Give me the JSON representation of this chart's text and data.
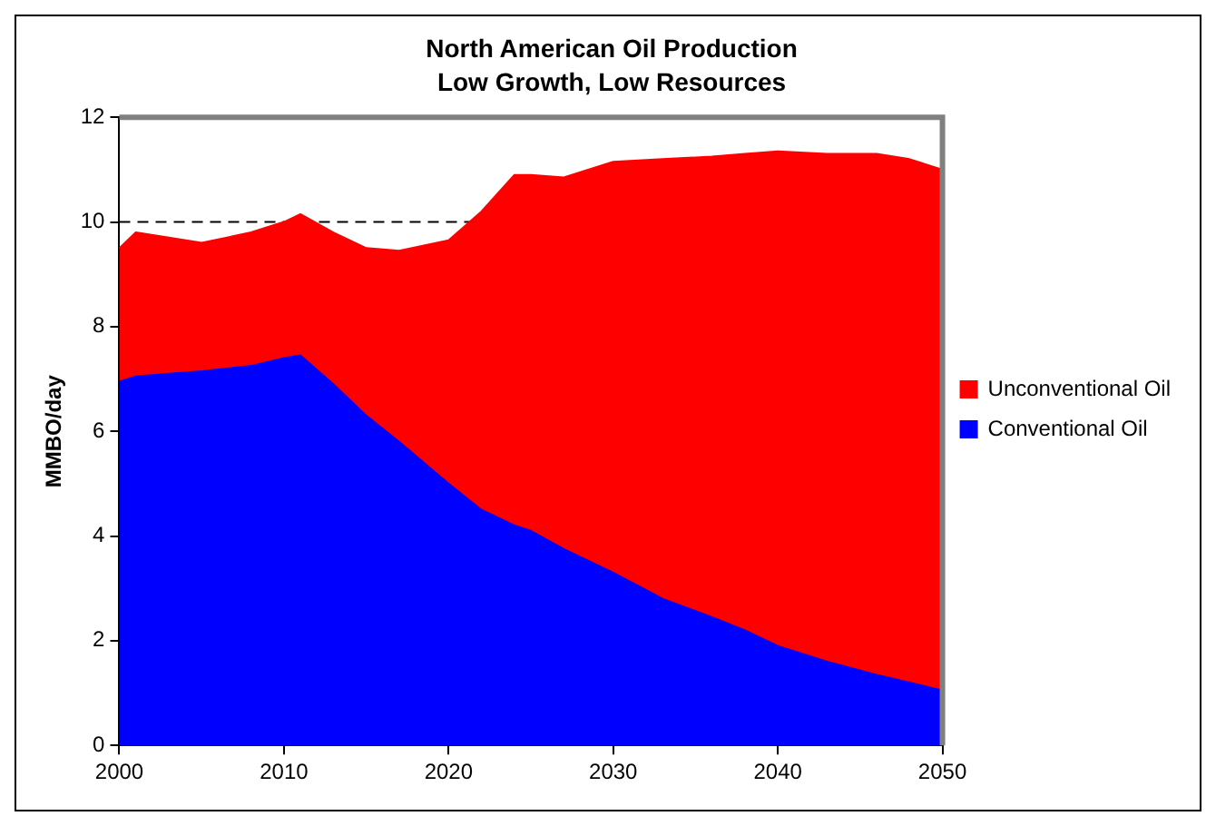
{
  "chart_data": {
    "type": "area",
    "title": "North American Oil Production",
    "subtitle": "Low Growth, Low Resources",
    "ylabel": "MMBO/day",
    "stacked": true,
    "x": [
      2000,
      2001,
      2003,
      2005,
      2008,
      2010,
      2011,
      2013,
      2015,
      2017,
      2020,
      2022,
      2024,
      2025,
      2027,
      2030,
      2033,
      2036,
      2038,
      2040,
      2043,
      2046,
      2048,
      2050
    ],
    "series": [
      {
        "name": "Conventional Oil",
        "color": "#0000ff",
        "values": [
          6.95,
          7.05,
          7.1,
          7.15,
          7.25,
          7.4,
          7.45,
          6.9,
          6.3,
          5.8,
          5.0,
          4.5,
          4.2,
          4.1,
          3.75,
          3.3,
          2.8,
          2.45,
          2.2,
          1.9,
          1.6,
          1.35,
          1.2,
          1.05
        ]
      },
      {
        "name": "Unconventional Oil",
        "color": "#ff0000",
        "values": [
          2.55,
          2.75,
          2.6,
          2.45,
          2.55,
          2.6,
          2.7,
          2.9,
          3.2,
          3.65,
          4.65,
          5.7,
          6.7,
          6.8,
          7.1,
          7.85,
          8.4,
          8.8,
          9.1,
          9.45,
          9.7,
          9.95,
          10.0,
          9.95
        ]
      }
    ],
    "xlim": [
      2000,
      2050
    ],
    "xticks": [
      2000,
      2010,
      2020,
      2030,
      2040,
      2050
    ],
    "ylim": [
      0,
      12
    ],
    "yticks": [
      0,
      2,
      4,
      6,
      8,
      10,
      12
    ],
    "ref_lines": [
      {
        "axis": "y",
        "value": 10,
        "line_style": "dashed",
        "color": "#000000"
      }
    ],
    "grid": false,
    "legend": "right"
  }
}
